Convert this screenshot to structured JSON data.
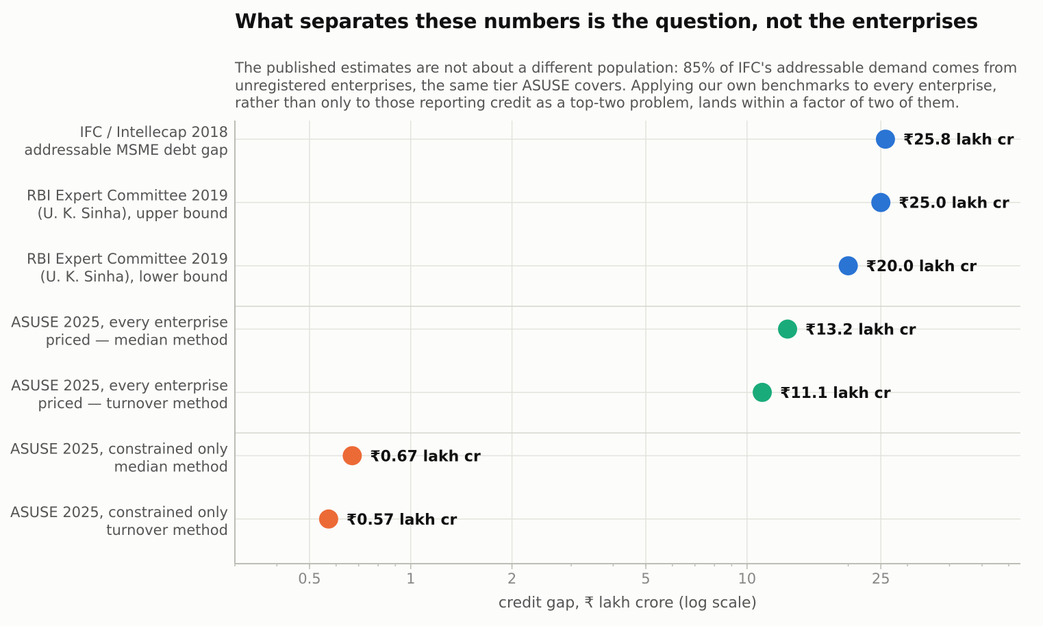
{
  "chart_data": {
    "type": "scatter",
    "title": "What separates these numbers is the question, not the enterprises",
    "subtitle_lines": [
      "The published estimates are not about a different population: 85% of IFC's addressable demand comes from",
      "unregistered enterprises, the same tier ASUSE covers. Applying our own benchmarks to every enterprise,",
      "rather than only to those reporting credit as a top-two problem, lands within a factor of two of them."
    ],
    "xlabel": "credit gap, ₹ lakh crore (log scale)",
    "xscale": "log",
    "xlim": [
      0.3,
      65
    ],
    "xticks": [
      0.5,
      1,
      2,
      5,
      10,
      25
    ],
    "xtick_labels": [
      "0.5",
      "1",
      "2",
      "5",
      "10",
      "25"
    ],
    "grid": true,
    "points": [
      {
        "label_lines": [
          "IFC / Intellecap 2018",
          "addressable MSME debt gap"
        ],
        "value": 25.8,
        "value_label": "₹25.8 lakh cr",
        "color": "#2a74d4"
      },
      {
        "label_lines": [
          "RBI Expert Committee 2019",
          "(U. K. Sinha), upper bound"
        ],
        "value": 25.0,
        "value_label": "₹25.0 lakh cr",
        "color": "#2a74d4"
      },
      {
        "label_lines": [
          "RBI Expert Committee 2019",
          "(U. K. Sinha), lower bound"
        ],
        "value": 20.0,
        "value_label": "₹20.0 lakh cr",
        "color": "#2a74d4"
      },
      {
        "label_lines": [
          "ASUSE 2025, every enterprise",
          "priced — median method"
        ],
        "value": 13.2,
        "value_label": "₹13.2 lakh cr",
        "color": "#1aab7a"
      },
      {
        "label_lines": [
          "ASUSE 2025, every enterprise",
          "priced — turnover method"
        ],
        "value": 11.1,
        "value_label": "₹11.1 lakh cr",
        "color": "#1aab7a"
      },
      {
        "label_lines": [
          "ASUSE 2025, constrained only",
          "median method"
        ],
        "value": 0.67,
        "value_label": "₹0.67 lakh cr",
        "color": "#ec6a36"
      },
      {
        "label_lines": [
          "ASUSE 2025, constrained only",
          "turnover method"
        ],
        "value": 0.57,
        "value_label": "₹0.57 lakh cr",
        "color": "#ec6a36"
      }
    ],
    "group_breaks_after": [
      2,
      4
    ]
  }
}
